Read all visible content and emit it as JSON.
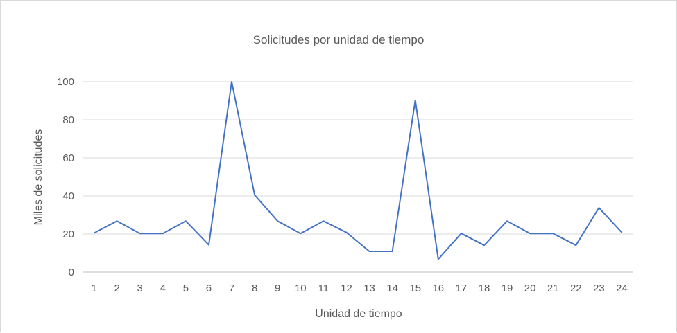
{
  "chart_data": {
    "type": "line",
    "title": "Solicitudes por unidad de tiempo",
    "xlabel": "Unidad de tiempo",
    "ylabel": "Miles de solicitudes",
    "ylim": [
      0,
      100
    ],
    "yticks": [
      0,
      20,
      40,
      60,
      80,
      100
    ],
    "grid": true,
    "legend": "none",
    "series_color": "#4472c4",
    "categories": [
      "1",
      "2",
      "3",
      "4",
      "5",
      "6",
      "7",
      "8",
      "9",
      "10",
      "11",
      "12",
      "13",
      "14",
      "15",
      "16",
      "17",
      "18",
      "19",
      "20",
      "21",
      "22",
      "23",
      "24"
    ],
    "values": [
      20.5,
      26.8,
      20.3,
      20.3,
      26.8,
      14.3,
      100,
      40.5,
      26.8,
      20.3,
      26.8,
      20.8,
      10.9,
      10.9,
      90.3,
      6.8,
      20.3,
      14.1,
      26.8,
      20.3,
      20.3,
      14.1,
      33.8,
      20.8
    ]
  }
}
